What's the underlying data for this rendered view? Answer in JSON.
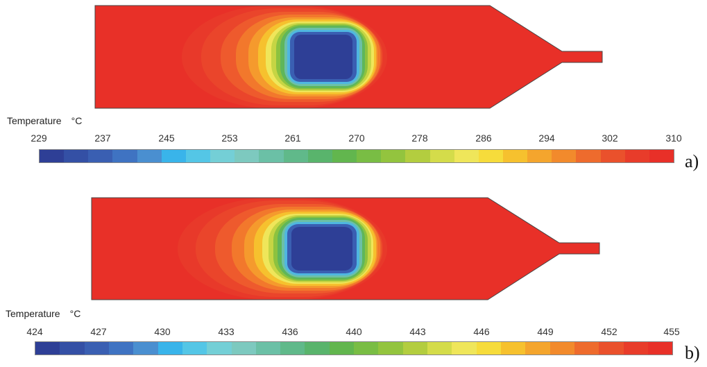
{
  "panels": [
    {
      "label": "a)",
      "colorbar_title": "Temperature",
      "unit": "°C",
      "ticks": [
        "229",
        "237",
        "245",
        "253",
        "261",
        "270",
        "278",
        "286",
        "294",
        "302",
        "310"
      ]
    },
    {
      "label": "b)",
      "colorbar_title": "Temperature",
      "unit": "°C",
      "ticks": [
        "424",
        "427",
        "430",
        "433",
        "436",
        "440",
        "443",
        "446",
        "449",
        "452",
        "455"
      ]
    }
  ],
  "colormap": [
    "#2e3f96",
    "#3450a5",
    "#3a5fb2",
    "#3f73c2",
    "#4a8fd0",
    "#39b4ea",
    "#54c6e6",
    "#74cfd6",
    "#7dc9bf",
    "#6bc0a6",
    "#60b98a",
    "#59b46c",
    "#62b64e",
    "#79bd44",
    "#93c43e",
    "#b3cd3f",
    "#d4dc4a",
    "#efe65a",
    "#f6dc3b",
    "#f6c12e",
    "#f4a52d",
    "#f28a2c",
    "#ee6b2d",
    "#ea512c",
    "#e83c2a",
    "#e83028"
  ]
}
